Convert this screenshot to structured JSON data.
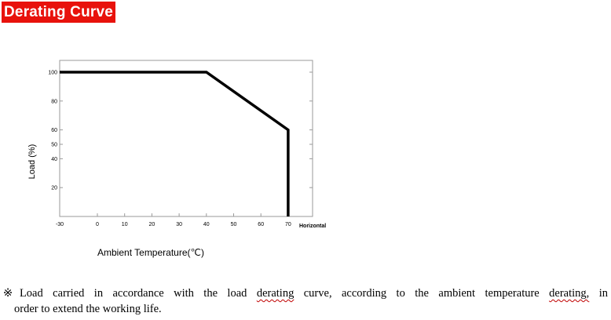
{
  "title": "Derating Curve",
  "chart_data": {
    "type": "line",
    "title": "",
    "ylabel": "Load (%)",
    "xlabel": "Ambient Temperature(℃)",
    "x_axis_suffix": "Horizontal",
    "x_ticks": [
      -30,
      0,
      10,
      20,
      30,
      40,
      50,
      60,
      70
    ],
    "y_ticks": [
      20,
      40,
      50,
      60,
      80,
      100
    ],
    "xlim": [
      -30,
      70
    ],
    "ylim": [
      0,
      100
    ],
    "grid": false,
    "series": [
      {
        "x": [
          -30,
          40,
          70,
          70
        ],
        "y": [
          100,
          100,
          60,
          0
        ]
      }
    ]
  },
  "note": {
    "line1_pre": "※Load carried in accordance with the load ",
    "line1_w1": "derating",
    "line1_mid": " curve, according to the ambient temperature ",
    "line1_w2": "derating,",
    "line1_post": " in",
    "line2": "order to extend the working life."
  }
}
